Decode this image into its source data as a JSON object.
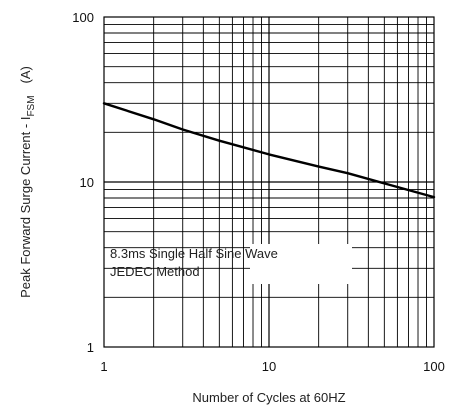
{
  "chart_data": {
    "type": "line",
    "xlabel": "Number of Cycles at 60HZ",
    "ylabel_main": "Peak Forward Surge Current - I",
    "ylabel_sub": "FSM",
    "ylabel_unit": "(A)",
    "x_scale": "log",
    "y_scale": "log",
    "xlim": [
      1,
      100
    ],
    "ylim": [
      1,
      100
    ],
    "grid": true,
    "x_ticks": [
      {
        "value": 1,
        "label": "1"
      },
      {
        "value": 10,
        "label": "10"
      },
      {
        "value": 100,
        "label": "100"
      }
    ],
    "y_ticks": [
      {
        "value": 1,
        "label": "1"
      },
      {
        "value": 10,
        "label": "10"
      },
      {
        "value": 100,
        "label": "100"
      }
    ],
    "annotations": [
      "8.3ms Single Half Sine Wave",
      "JEDEC Method"
    ],
    "series": [
      {
        "color": "#000000",
        "x": [
          1,
          2,
          3,
          5,
          10,
          20,
          30,
          50,
          100
        ],
        "y": [
          30,
          24,
          20.8,
          17.8,
          14.7,
          12.4,
          11.3,
          9.8,
          8.1
        ]
      }
    ]
  }
}
